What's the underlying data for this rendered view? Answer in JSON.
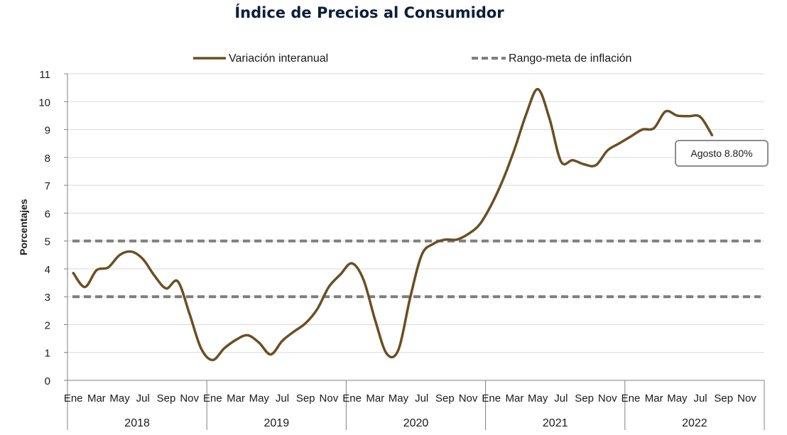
{
  "chart_data": {
    "type": "line",
    "title": "Índice de Precios al Consumidor",
    "ylabel": "Porcentajes",
    "xlabel": "",
    "ylim": [
      0,
      11
    ],
    "yticks": [
      0,
      1,
      2,
      3,
      4,
      5,
      6,
      7,
      8,
      9,
      10,
      11
    ],
    "grid": true,
    "legend_position": "top",
    "month_tick_labels": [
      "Ene",
      "Mar",
      "May",
      "Jul",
      "Sep",
      "Nov"
    ],
    "years": [
      "2018",
      "2019",
      "2020",
      "2021",
      "2022"
    ],
    "series": [
      {
        "name": "Variación interanual",
        "color": "#6b4f22",
        "style": "solid",
        "values": [
          3.85,
          3.35,
          3.95,
          4.05,
          4.5,
          4.62,
          4.35,
          3.75,
          3.3,
          3.55,
          2.4,
          1.15,
          0.73,
          1.15,
          1.45,
          1.62,
          1.35,
          0.93,
          1.42,
          1.75,
          2.05,
          2.55,
          3.35,
          3.8,
          4.2,
          3.6,
          2.15,
          0.95,
          1.1,
          2.95,
          4.5,
          4.9,
          5.05,
          5.05,
          5.25,
          5.6,
          6.3,
          7.2,
          8.3,
          9.55,
          10.45,
          9.4,
          7.85,
          7.9,
          7.75,
          7.72,
          8.25,
          8.5,
          8.75,
          9.0,
          9.05,
          9.65,
          9.5,
          9.48,
          9.45,
          8.8
        ]
      },
      {
        "name": "Rango-meta de inflación",
        "color": "#7f7f7f",
        "style": "dashed",
        "values": [
          5,
          3
        ]
      }
    ],
    "annotations": [
      {
        "text": "Agosto 8.80%",
        "x": "2022-08",
        "y": 8.8
      }
    ]
  }
}
